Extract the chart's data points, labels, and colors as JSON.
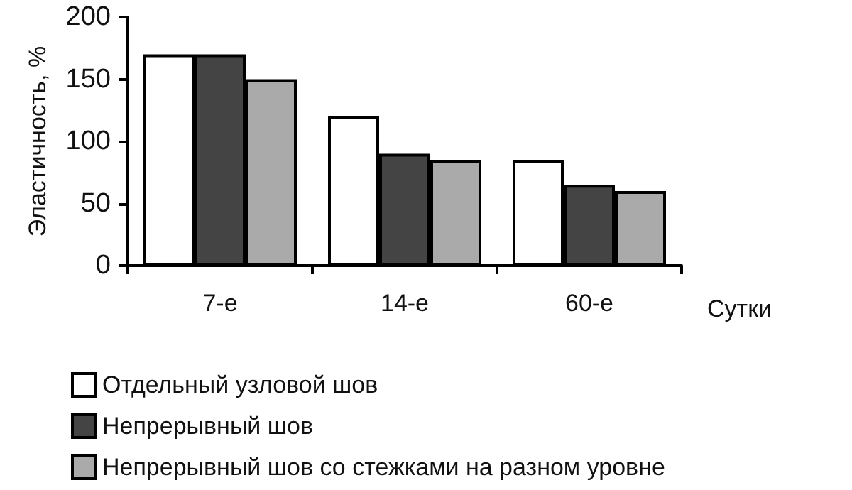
{
  "chart_data": {
    "type": "bar",
    "xlabel": "Сутки",
    "ylabel": "Эластичность, %",
    "categories": [
      "7-е",
      "14-е",
      "60-е"
    ],
    "series": [
      {
        "name": "Отдельный узловой шов",
        "color": "#ffffff",
        "values": [
          170,
          120,
          85
        ]
      },
      {
        "name": "Непрерывный шов",
        "color": "#444444",
        "values": [
          170,
          90,
          65
        ]
      },
      {
        "name": "Непрерывный шов со стежками на разном уровне",
        "color": "#aaaaaa",
        "values": [
          150,
          85,
          60
        ]
      }
    ],
    "ylim": [
      0,
      200
    ],
    "yticks": [
      0,
      50,
      100,
      150,
      200
    ],
    "grid": false,
    "legend": "bottom"
  }
}
